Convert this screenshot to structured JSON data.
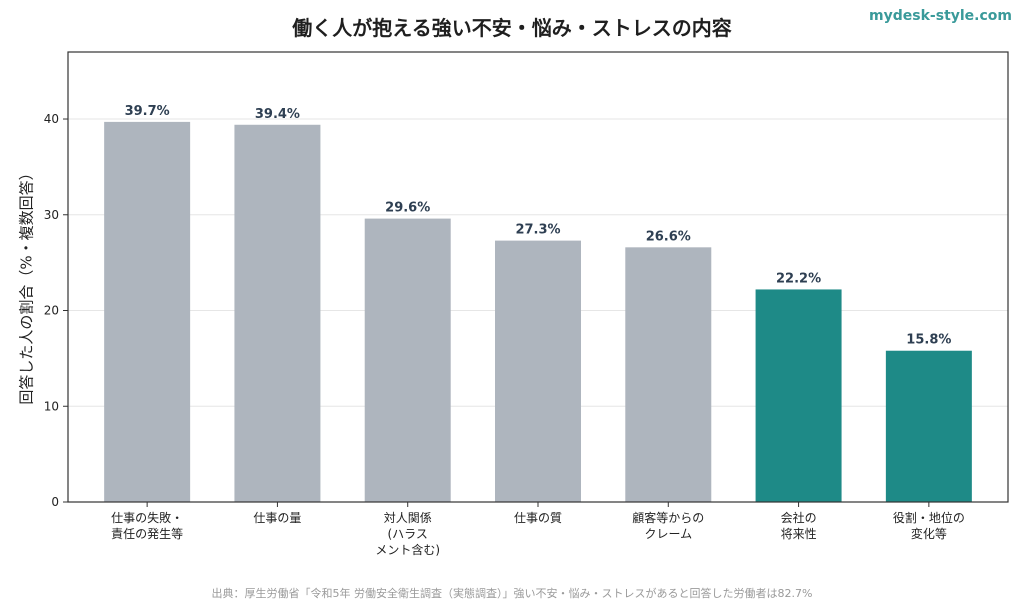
{
  "brand": "mydesk-style.com",
  "source_note": "出典：厚生労働省「令和5年 労働安全衛生調査（実態調査）」強い不安・悩み・ストレスがあると回答した労働者は82.7%",
  "colors": {
    "gray": "#aeb5be",
    "teal": "#1e8a87",
    "grid": "#e6e6e6",
    "axis": "#333333",
    "label": "#2e3f52"
  },
  "chart_data": {
    "type": "bar",
    "title": "働く人が抱える強い不安・悩み・ストレスの内容",
    "xlabel": "",
    "ylabel": "回答した人の割合（%・複数回答）",
    "ylim": [
      0,
      47
    ],
    "yticks": [
      0,
      10,
      20,
      30,
      40
    ],
    "grid": true,
    "categories": [
      [
        "仕事の失敗・",
        "責任の発生等"
      ],
      [
        "仕事の量"
      ],
      [
        "対人関係",
        "(ハラス",
        "メント含む)"
      ],
      [
        "仕事の質"
      ],
      [
        "顧客等からの",
        "クレーム"
      ],
      [
        "会社の",
        "将来性"
      ],
      [
        "役割・地位の",
        "変化等"
      ]
    ],
    "values": [
      39.7,
      39.4,
      29.6,
      27.3,
      26.6,
      22.2,
      15.8
    ],
    "value_labels": [
      "39.7%",
      "39.4%",
      "29.6%",
      "27.3%",
      "26.6%",
      "22.2%",
      "15.8%"
    ],
    "bar_colors": [
      "gray",
      "gray",
      "gray",
      "gray",
      "gray",
      "teal",
      "teal"
    ]
  }
}
